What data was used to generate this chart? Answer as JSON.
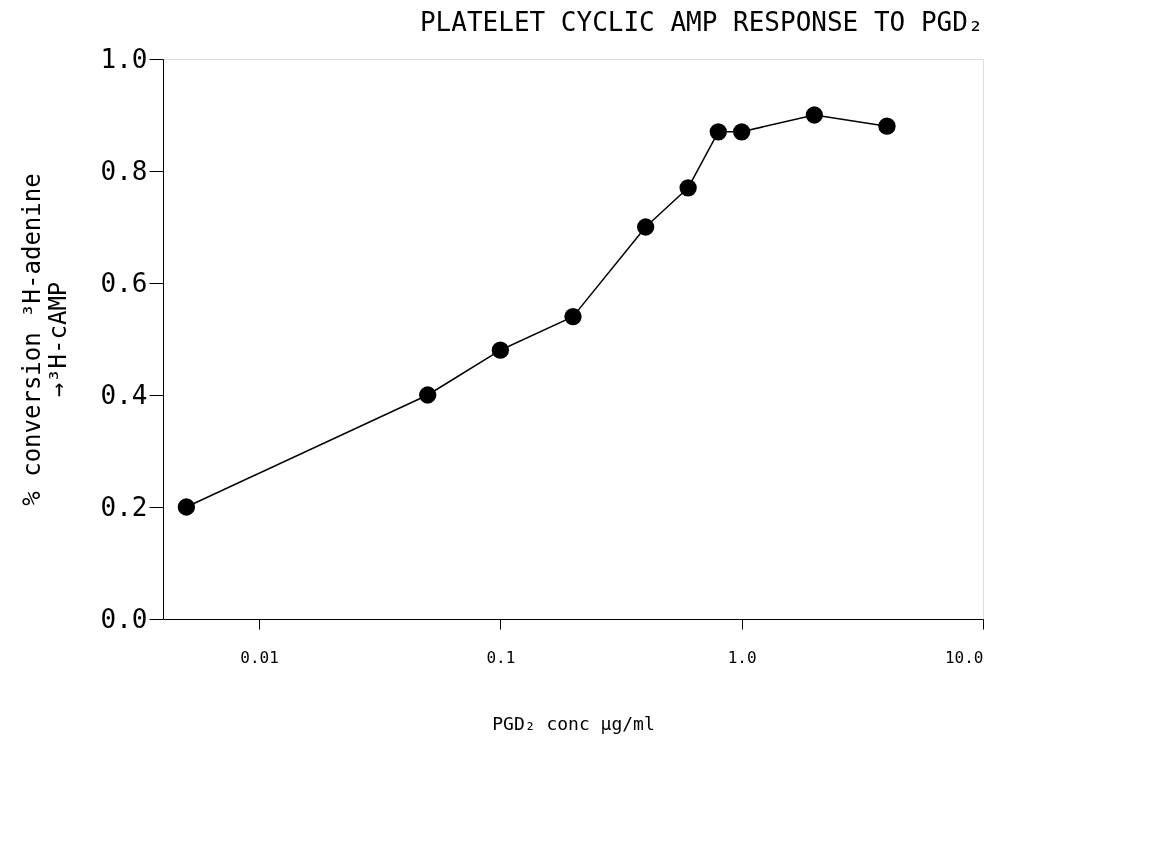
{
  "chart_data": {
    "type": "line",
    "title": "PLATELET CYCLIC AMP RESPONSE TO PGD₂",
    "xlabel": "PGD₂ conc µg/ml",
    "ylabel": "% conversion ³H-adenine\n→³H-cAMP",
    "x": [
      0.005,
      0.05,
      0.1,
      0.2,
      0.4,
      0.6,
      0.8,
      1.0,
      2.0,
      4.0
    ],
    "series": [
      {
        "color": "#000000",
        "values": [
          0.2,
          0.4,
          0.48,
          0.54,
          0.7,
          0.77,
          0.87,
          0.87,
          0.9,
          0.88
        ]
      }
    ],
    "log": "x",
    "xlim": [
      0.004,
      10
    ],
    "xticks": [
      0.01,
      0.1,
      {
        "value": 1,
        "label": "1.0"
      },
      {
        "value": 10,
        "label": "10.0"
      }
    ],
    "ylim": [
      0,
      1
    ],
    "yticks": [
      {
        "value": 0,
        "label": "0.0"
      },
      0.2,
      0.4,
      0.6,
      0.8,
      {
        "value": 1,
        "label": "1.0"
      }
    ],
    "marker": "circle",
    "line_style": "solid",
    "grid": false
  }
}
